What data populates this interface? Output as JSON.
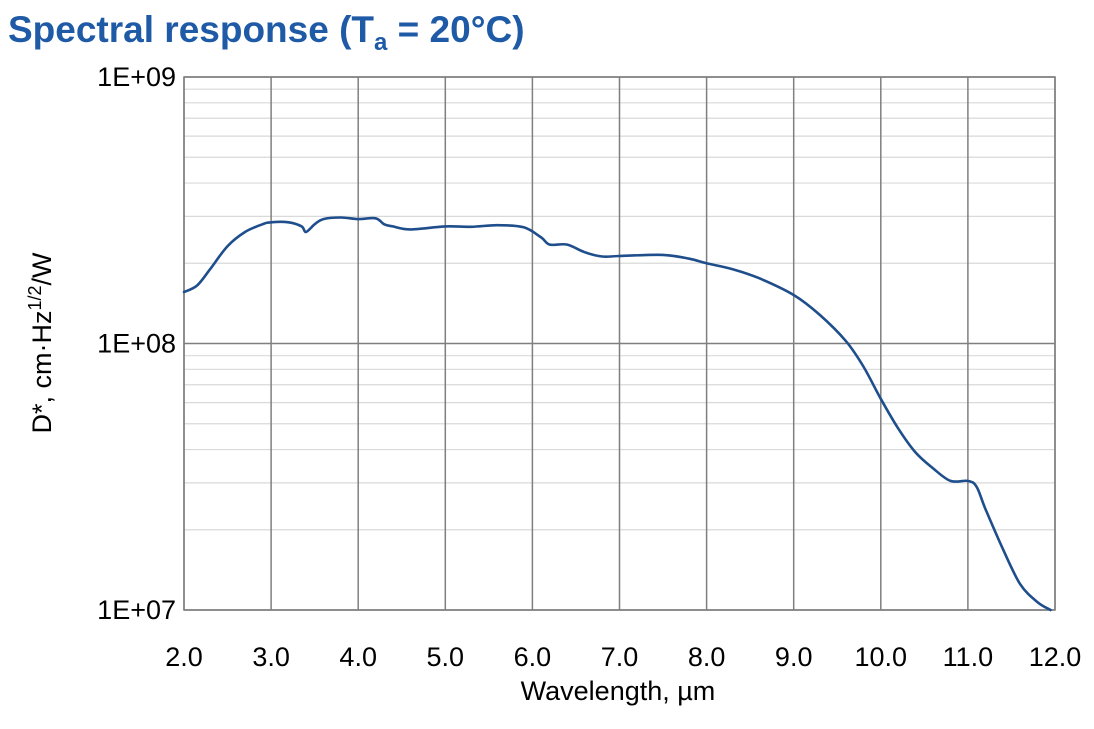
{
  "chart_data": {
    "type": "line",
    "title": {
      "main": "Spectral response (T",
      "subscript": "a",
      "rest": " = 20°C)"
    },
    "xlabel": "Wavelength, µm",
    "ylabel": {
      "main": "D*, cm·Hz",
      "superscript": "1/2",
      "rest": "/W"
    },
    "xlim": [
      2.0,
      12.0
    ],
    "ylim": [
      10000000,
      1000000000
    ],
    "yscale": "log",
    "grid": true,
    "x_ticks": [
      "2.0",
      "3.0",
      "4.0",
      "5.0",
      "6.0",
      "7.0",
      "8.0",
      "9.0",
      "10.0",
      "11.0",
      "12.0"
    ],
    "y_ticks": [
      "1E+07",
      "1E+08",
      "1E+09"
    ],
    "line_color": "#1f4e8c",
    "series": [
      {
        "x": [
          2.0,
          2.15,
          2.3,
          2.5,
          2.7,
          2.9,
          3.0,
          3.2,
          3.35,
          3.4,
          3.5,
          3.6,
          3.8,
          4.0,
          4.2,
          4.3,
          4.4,
          4.6,
          5.0,
          5.3,
          5.6,
          5.9,
          6.1,
          6.2,
          6.4,
          6.6,
          6.8,
          7.0,
          7.5,
          7.8,
          8.0,
          8.3,
          8.6,
          9.0,
          9.3,
          9.6,
          9.8,
          10.0,
          10.2,
          10.4,
          10.6,
          10.8,
          11.0,
          11.1,
          11.2,
          11.4,
          11.6,
          11.8,
          11.95
        ],
        "y": [
          156000000,
          165000000,
          190000000,
          232000000,
          262000000,
          280000000,
          285000000,
          285000000,
          275000000,
          262000000,
          280000000,
          293000000,
          297000000,
          293000000,
          295000000,
          280000000,
          275000000,
          268000000,
          275000000,
          274000000,
          278000000,
          273000000,
          250000000,
          235000000,
          235000000,
          220000000,
          212000000,
          213000000,
          215000000,
          208000000,
          200000000,
          190000000,
          176000000,
          152000000,
          128000000,
          102000000,
          82000000,
          62000000,
          48000000,
          39000000,
          34000000,
          30500000,
          30500000,
          29000000,
          24000000,
          17000000,
          12500000,
          10700000,
          10000000
        ]
      }
    ]
  }
}
